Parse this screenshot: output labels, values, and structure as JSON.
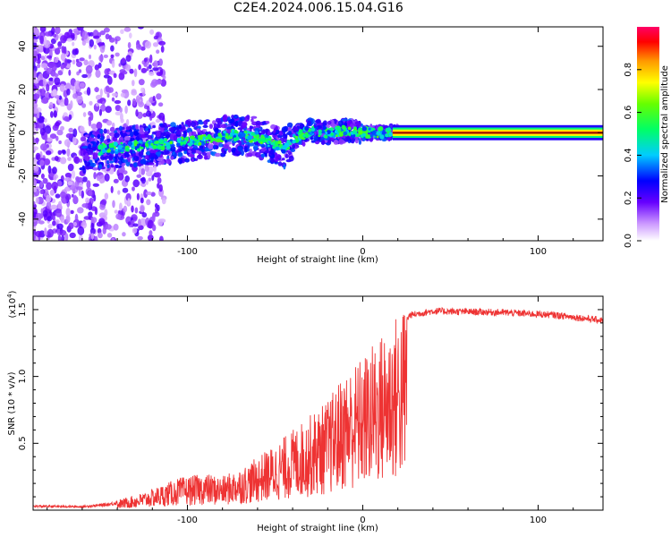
{
  "title": "C2E4.2024.006.15.04.G16",
  "chart_data": [
    {
      "type": "heatmap",
      "xlabel": "Height of straight line (km)",
      "ylabel": "Frequency (Hz)",
      "xlim": [
        -188,
        137
      ],
      "ylim": [
        -50,
        49
      ],
      "xticks": [
        -100,
        0,
        100
      ],
      "xtick_labels": [
        "-100",
        "0",
        "100"
      ],
      "yticks": [
        -40,
        -20,
        0,
        20,
        40
      ],
      "ytick_labels": [
        "-40",
        "-20",
        "0",
        "20",
        "40"
      ],
      "colorbar": {
        "label": "Normalized spectral amplitude",
        "range": [
          0,
          1
        ],
        "ticks": [
          0.0,
          0.2,
          0.4,
          0.6,
          0.8
        ],
        "tick_labels": [
          "0.0",
          "0.2",
          "0.4",
          "0.6",
          "0.8"
        ]
      },
      "ridge_points": [
        {
          "x": -150,
          "f": -8
        },
        {
          "x": -130,
          "f": -6
        },
        {
          "x": -110,
          "f": -5
        },
        {
          "x": -90,
          "f": -3
        },
        {
          "x": -75,
          "f": -1
        },
        {
          "x": -60,
          "f": -2
        },
        {
          "x": -45,
          "f": -7
        },
        {
          "x": -38,
          "f": -2
        },
        {
          "x": -30,
          "f": 1
        },
        {
          "x": -20,
          "f": 0
        },
        {
          "x": -10,
          "f": 1
        },
        {
          "x": 0,
          "f": 0
        },
        {
          "x": 10,
          "f": 0
        },
        {
          "x": 20,
          "f": 0
        },
        {
          "x": 137,
          "f": 0
        }
      ],
      "carrier_line": {
        "x_start": 17,
        "x_end": 137,
        "f": 0,
        "amplitude": 0.9
      }
    },
    {
      "type": "line",
      "xlabel": "Height of straight line (km)",
      "ylabel": "SNR (10 * v/v)",
      "y_multiplier": "(x10",
      "y_multiplier_exp": "4",
      "y_multiplier_close": ")",
      "xlim": [
        -188,
        137
      ],
      "ylim": [
        0,
        16000
      ],
      "xticks": [
        -100,
        0,
        100
      ],
      "xtick_labels": [
        "-100",
        "0",
        "100"
      ],
      "yticks": [
        5000,
        10000,
        15000
      ],
      "ytick_labels": [
        "0.5",
        "1.0",
        "1.5"
      ],
      "color": "#ee3333",
      "series_envelope": [
        {
          "x": -188,
          "y": 350
        },
        {
          "x": -160,
          "y": 300
        },
        {
          "x": -145,
          "y": 500
        },
        {
          "x": -125,
          "y": 1200
        },
        {
          "x": -105,
          "y": 2200
        },
        {
          "x": -90,
          "y": 2500
        },
        {
          "x": -80,
          "y": 2300
        },
        {
          "x": -65,
          "y": 3200
        },
        {
          "x": -50,
          "y": 4500
        },
        {
          "x": -30,
          "y": 6500
        },
        {
          "x": -20,
          "y": 7500
        },
        {
          "x": -10,
          "y": 9500
        },
        {
          "x": 0,
          "y": 10500
        },
        {
          "x": 10,
          "y": 12000
        },
        {
          "x": 20,
          "y": 13500
        },
        {
          "x": 27,
          "y": 14700
        },
        {
          "x": 40,
          "y": 15000
        },
        {
          "x": 80,
          "y": 14900
        },
        {
          "x": 110,
          "y": 14700
        },
        {
          "x": 137,
          "y": 14300
        }
      ]
    }
  ]
}
